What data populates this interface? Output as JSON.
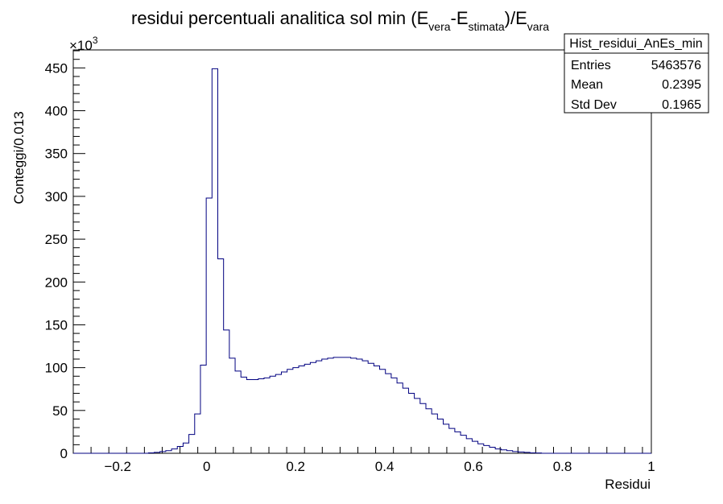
{
  "chart_data": {
    "type": "bar",
    "histogram": true,
    "title": {
      "main": "residui percentuali analitica sol min (E",
      "sub1": "vera",
      "mid": "-E",
      "sub2": "stimata",
      "end": ")/E",
      "sub3": "vara"
    },
    "xlabel": "Residui",
    "ylabel": "Conteggi/0.013",
    "y_multiplier": "×10",
    "y_multiplier_exp": "3",
    "xlim": [
      -0.3,
      1.0
    ],
    "ylim": [
      0,
      471
    ],
    "x_ticks": [
      {
        "value": -0.2,
        "label": "−0.2"
      },
      {
        "value": 0,
        "label": "0"
      },
      {
        "value": 0.2,
        "label": "0.2"
      },
      {
        "value": 0.4,
        "label": "0.4"
      },
      {
        "value": 0.6,
        "label": "0.6"
      },
      {
        "value": 0.8,
        "label": "0.8"
      },
      {
        "value": 1.0,
        "label": "1"
      }
    ],
    "y_ticks": [
      {
        "value": 0,
        "label": "0"
      },
      {
        "value": 50,
        "label": "50"
      },
      {
        "value": 100,
        "label": "100"
      },
      {
        "value": 150,
        "label": "150"
      },
      {
        "value": 200,
        "label": "200"
      },
      {
        "value": 250,
        "label": "250"
      },
      {
        "value": 300,
        "label": "300"
      },
      {
        "value": 350,
        "label": "350"
      },
      {
        "value": 400,
        "label": "400"
      },
      {
        "value": 450,
        "label": "450"
      }
    ],
    "bin_start": -0.3,
    "bin_width": 0.013,
    "counts": [
      0,
      0,
      0,
      0,
      0,
      0,
      0,
      0,
      0,
      0,
      0,
      0,
      0,
      0.5,
      1,
      2,
      3,
      5,
      8,
      12,
      22,
      46,
      103,
      298,
      449,
      227,
      144,
      111,
      96,
      89,
      86,
      86,
      87,
      88,
      90,
      92,
      95,
      98,
      100,
      102,
      104,
      106,
      108,
      110,
      111,
      112,
      112,
      112,
      111,
      110,
      108,
      105,
      102,
      98,
      93,
      88,
      82,
      76,
      70,
      64,
      58,
      52,
      46,
      40,
      34,
      29,
      25,
      21,
      17,
      14,
      11,
      9,
      7,
      5,
      4,
      3,
      2,
      1.5,
      1,
      0.5,
      0.3,
      0,
      0,
      0,
      0,
      0,
      0,
      0,
      0,
      0,
      0,
      0,
      0,
      0,
      0,
      0,
      0,
      0,
      0,
      0
    ],
    "series": [
      {
        "name": "Hist_residui_AnEs_min",
        "color": "#000080"
      }
    ]
  },
  "stats": {
    "name": "Hist_residui_AnEs_min",
    "rows": [
      {
        "label": "Entries",
        "value": "5463576"
      },
      {
        "label": "Mean",
        "value": "0.2395"
      },
      {
        "label": "Std Dev",
        "value": "0.1965"
      }
    ]
  }
}
